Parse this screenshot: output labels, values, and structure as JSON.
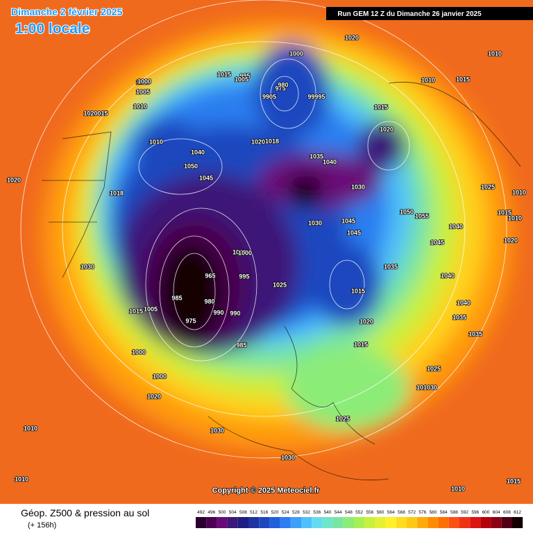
{
  "header": {
    "date": "Dimanche 2 février 2025",
    "time": "1:00 locale",
    "run": "Run GEM 12 Z du Dimanche 26 janvier 2025"
  },
  "map": {
    "copyright": "Copyright © 2025 Meteociel.fr",
    "isobar_labels": [
      "1020",
      "1010",
      "1015",
      "1000",
      "995",
      "1005",
      "1010",
      "1015",
      "1005",
      "1020015",
      "1010",
      "1000",
      "9905",
      "975",
      "980",
      "99995",
      "1015",
      "1010",
      "1040",
      "1050",
      "1045",
      "1020",
      "1018",
      "1020",
      "1035",
      "1040",
      "1030",
      "1010",
      "1018",
      "1030",
      "1045",
      "1045",
      "1050",
      "1055",
      "1040",
      "1045",
      "1040",
      "1035",
      "1000",
      "975",
      "965",
      "980",
      "985",
      "990",
      "990",
      "1000",
      "995",
      "1025",
      "1015",
      "1020",
      "1015",
      "1005",
      "1015",
      "1000",
      "985",
      "1000",
      "1020",
      "1030",
      "1030",
      "1020",
      "1025",
      "1025",
      "1030",
      "101030",
      "1025",
      "1035",
      "1035",
      "1040",
      "1010",
      "1015",
      "1010",
      "1010",
      "1020",
      "1010",
      "1015",
      "1010"
    ]
  },
  "legend": {
    "title": "Géop. Z500 & pression au sol",
    "lead": "(+ 156h)",
    "levels": [
      492,
      496,
      500,
      504,
      508,
      512,
      516,
      520,
      524,
      528,
      532,
      536,
      540,
      544,
      548,
      552,
      556,
      560,
      564,
      568,
      572,
      576,
      580,
      584,
      588,
      592,
      596,
      600,
      604,
      608,
      612
    ],
    "colors": [
      "#2a0030",
      "#4b0050",
      "#6a0a78",
      "#3c1878",
      "#1e1e82",
      "#1e32a0",
      "#1e46be",
      "#2060dc",
      "#2a7ef0",
      "#3ca0f8",
      "#50c0fa",
      "#64dcf0",
      "#6ee6c8",
      "#78e6a0",
      "#8cec78",
      "#a6f050",
      "#c8f03c",
      "#e6f032",
      "#fff028",
      "#ffdc1e",
      "#ffc814",
      "#ffaa0a",
      "#ff8c00",
      "#ff6e00",
      "#fa5014",
      "#f03214",
      "#dc1414",
      "#b4000a",
      "#8c0014",
      "#500014",
      "#140000"
    ]
  }
}
